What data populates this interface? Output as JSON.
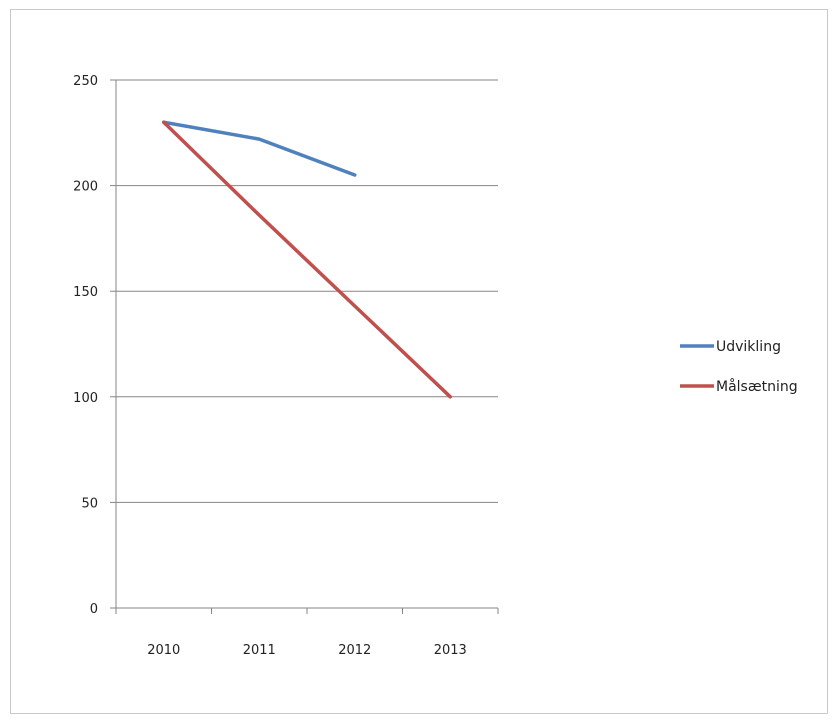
{
  "chart_data": {
    "type": "line",
    "categories": [
      "2010",
      "2011",
      "2012",
      "2013"
    ],
    "series": [
      {
        "name": "Udvikling",
        "values": [
          230,
          222,
          205,
          null
        ],
        "color": "#4f81bd"
      },
      {
        "name": "Målsætning",
        "values": [
          230,
          186,
          143,
          100
        ],
        "color": "#c0504d"
      }
    ],
    "ylim": [
      0,
      250
    ],
    "yticks": [
      0,
      50,
      100,
      150,
      200,
      250
    ],
    "grid": true,
    "legend_position": "right"
  }
}
